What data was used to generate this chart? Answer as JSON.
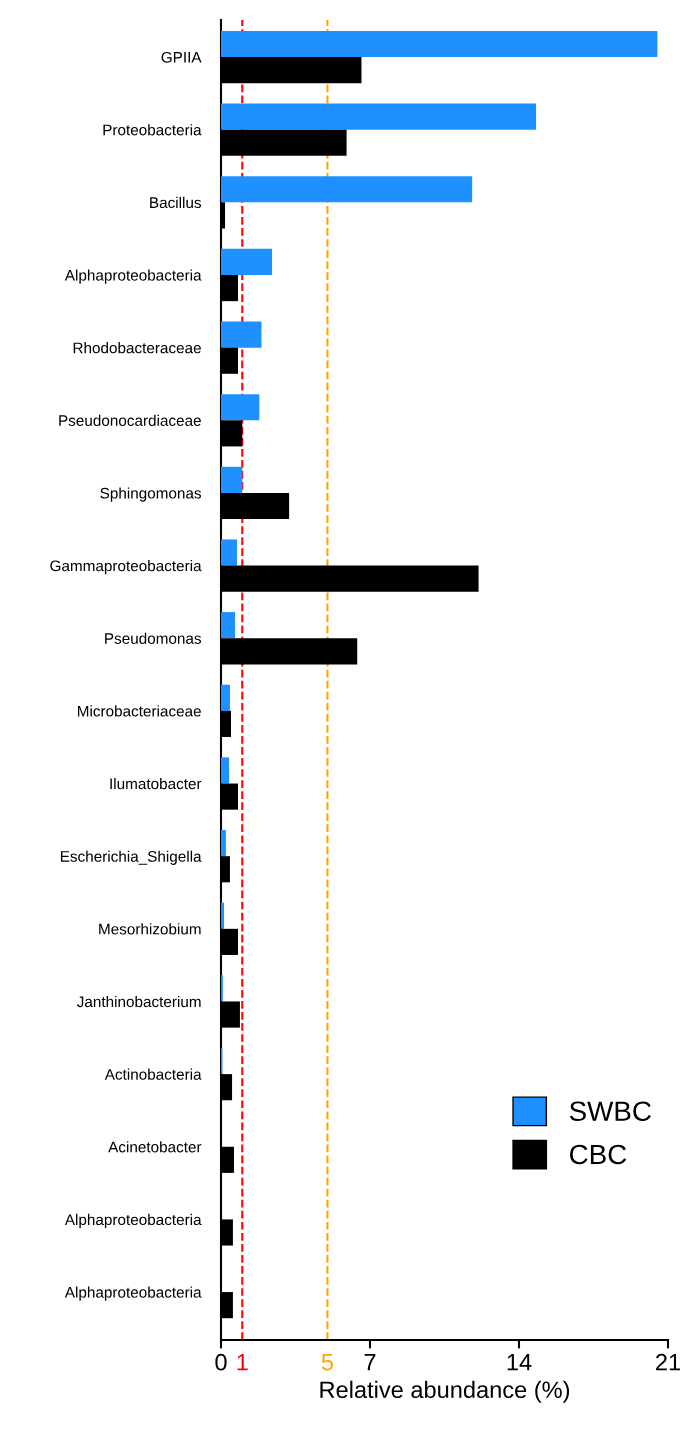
{
  "chart_data": {
    "type": "bar",
    "orientation": "horizontal",
    "xlabel": "Relative abundance (%)",
    "categories": [
      "GPIIA",
      "Proteobacteria",
      "Bacillus",
      "Alphaproteobacteria",
      "Rhodobacteraceae",
      "Pseudonocardiaceae",
      "Sphingomonas",
      "Gammaproteobacteria",
      "Pseudomonas",
      "Microbacteriaceae",
      "Ilumatobacter",
      "Escherichia_Shigella",
      "Mesorhizobium",
      "Janthinobacterium",
      "Actinobacteria",
      "Acinetobacter",
      "Alphaproteobacteria",
      "Alphaproteobacteria"
    ],
    "series": [
      {
        "name": "SWBC",
        "color": "#1e90ff",
        "values": [
          20.5,
          14.8,
          11.8,
          2.4,
          1.9,
          1.8,
          1.0,
          0.75,
          0.66,
          0.42,
          0.38,
          0.23,
          0.14,
          0.09,
          0.07,
          null,
          null,
          null
        ]
      },
      {
        "name": "CBC",
        "color": "#000000",
        "values": [
          6.6,
          5.9,
          0.19,
          0.8,
          0.8,
          1.0,
          3.2,
          12.1,
          6.4,
          0.47,
          0.8,
          0.42,
          0.8,
          0.89,
          0.52,
          0.61,
          0.56,
          0.56
        ]
      }
    ],
    "xlim": [
      0,
      21
    ],
    "xticks": [
      0,
      7,
      14,
      21
    ],
    "ref_lines": [
      {
        "axis": "x",
        "value": 1,
        "label": "1",
        "color": "#ff0000",
        "line_style": "dashed"
      },
      {
        "axis": "x",
        "value": 5,
        "label": "5",
        "color": "#ffa500",
        "line_style": "dashed"
      }
    ],
    "legend": "bottom right",
    "grid": false
  }
}
